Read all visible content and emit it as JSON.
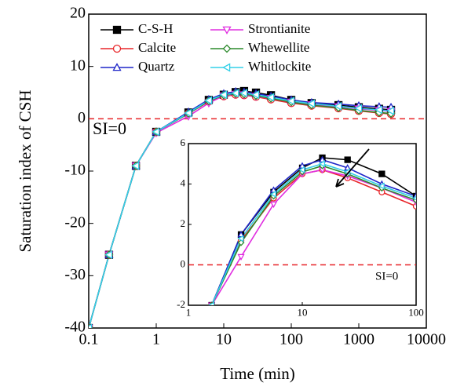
{
  "chart_data": [
    {
      "type": "line",
      "x_label": "Time (min)",
      "y_label": "Saturation index of CSH",
      "xscale": "log",
      "xlim": [
        0.1,
        10000
      ],
      "xticks": [
        0.1,
        1,
        10,
        100,
        1000,
        10000
      ],
      "ylim": [
        -40,
        20
      ],
      "yticks": [
        -40,
        -30,
        -20,
        -10,
        0,
        10,
        20
      ],
      "hline": 0,
      "hline_color": "#e8262a",
      "annotation": "SI=0",
      "legend": "upper left",
      "x": [
        0.1,
        0.2,
        0.5,
        1,
        3,
        6,
        10,
        15,
        20,
        30,
        50,
        100,
        200,
        500,
        1000,
        2000,
        3000
      ],
      "series": [
        {
          "name": "C-S-H",
          "color": "#000000",
          "marker": "filled-square",
          "values": [
            -40,
            -26,
            -9,
            -2.5,
            1.2,
            3.6,
            4.6,
            5.1,
            5.3,
            5.0,
            4.5,
            3.6,
            3.0,
            2.6,
            2.2,
            1.9,
            1.7
          ]
        },
        {
          "name": "Calcite",
          "color": "#e8262a",
          "marker": "circle",
          "values": [
            -40,
            -26,
            -9,
            -2.5,
            1.0,
            3.3,
            4.3,
            4.6,
            4.5,
            4.2,
            3.7,
            3.0,
            2.5,
            2.0,
            1.5,
            1.1,
            0.9
          ]
        },
        {
          "name": "Quartz",
          "color": "#1f26c8",
          "marker": "triangle-up",
          "values": [
            -40,
            -26,
            -9,
            -2.5,
            1.3,
            3.7,
            4.8,
            5.2,
            5.1,
            4.8,
            4.3,
            3.6,
            3.1,
            2.8,
            2.5,
            2.3,
            2.2
          ]
        },
        {
          "name": "Strontianite",
          "color": "#e02ee0",
          "marker": "triangle-down",
          "values": [
            -40,
            -26,
            -9,
            -2.7,
            0.5,
            3.0,
            4.4,
            4.7,
            4.6,
            4.3,
            3.9,
            3.2,
            2.7,
            2.3,
            1.9,
            1.6,
            1.4
          ]
        },
        {
          "name": "Whewellite",
          "color": "#2c8a2c",
          "marker": "diamond",
          "values": [
            -40,
            -26,
            -9,
            -2.5,
            1.0,
            3.4,
            4.5,
            4.8,
            4.7,
            4.4,
            3.9,
            3.2,
            2.6,
            2.1,
            1.6,
            1.2,
            1.0
          ]
        },
        {
          "name": "Whitlockite",
          "color": "#33d0e8",
          "marker": "triangle-left",
          "values": [
            -40,
            -26,
            -9,
            -2.5,
            1.1,
            3.5,
            4.6,
            4.9,
            4.9,
            4.6,
            4.1,
            3.4,
            2.9,
            2.4,
            2.0,
            1.7,
            1.5
          ]
        }
      ]
    },
    {
      "type": "line",
      "xscale": "log",
      "xlim": [
        1,
        100
      ],
      "xticks": [
        1,
        10,
        100
      ],
      "ylim": [
        -2,
        6
      ],
      "yticks": [
        -2,
        0,
        2,
        4,
        6
      ],
      "hline": 0,
      "hline_color": "#e8262a",
      "annotation": "SI=0",
      "x": [
        1.6,
        2.9,
        5.6,
        10,
        15,
        25,
        50,
        100
      ],
      "series": [
        {
          "color": "#000000",
          "marker": "filled-square",
          "values": [
            -2,
            1.5,
            3.6,
            4.8,
            5.3,
            5.2,
            4.5,
            3.4
          ]
        },
        {
          "color": "#e8262a",
          "marker": "circle",
          "values": [
            -2,
            1.2,
            3.3,
            4.5,
            4.7,
            4.3,
            3.6,
            2.9
          ]
        },
        {
          "color": "#1f26c8",
          "marker": "triangle-up",
          "values": [
            -2,
            1.5,
            3.7,
            4.9,
            5.2,
            4.8,
            4.0,
            3.4
          ]
        },
        {
          "color": "#e02ee0",
          "marker": "triangle-down",
          "values": [
            -2,
            0.4,
            3.0,
            4.5,
            4.7,
            4.4,
            3.8,
            3.1
          ]
        },
        {
          "color": "#2c8a2c",
          "marker": "diamond",
          "values": [
            -2,
            1.1,
            3.4,
            4.6,
            4.9,
            4.5,
            3.8,
            3.2
          ]
        },
        {
          "color": "#33d0e8",
          "marker": "triangle-left",
          "values": [
            -2,
            1.3,
            3.5,
            4.7,
            5.0,
            4.6,
            3.9,
            3.3
          ]
        }
      ]
    }
  ]
}
